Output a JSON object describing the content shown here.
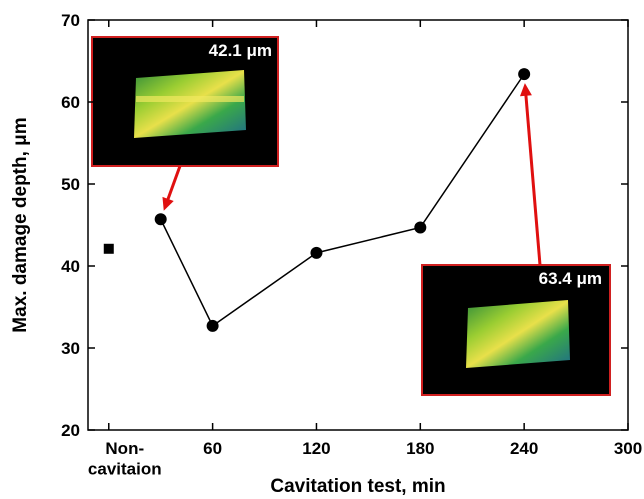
{
  "chart_data": {
    "type": "line",
    "xlabel": "Cavitation test, min",
    "ylabel": "Max. damage depth, μm",
    "xlim": [
      -12,
      300
    ],
    "ylim": [
      20,
      70
    ],
    "xticks": [
      {
        "value": 0,
        "label": "Non-\ncavitaion"
      },
      60,
      120,
      180,
      240,
      300
    ],
    "yticks": [
      20,
      30,
      40,
      50,
      60,
      70
    ],
    "series": [
      {
        "marker": "square",
        "color": "#000000",
        "x": [
          0
        ],
        "values": [
          42.1
        ]
      },
      {
        "marker": "circle",
        "color": "#000000",
        "x": [
          30,
          60,
          120,
          180,
          240
        ],
        "values": [
          45.7,
          32.7,
          41.6,
          44.7,
          63.4
        ]
      }
    ],
    "annotations": [
      {
        "text": "42.1 μm"
      },
      {
        "text": "63.4 μm"
      }
    ]
  }
}
